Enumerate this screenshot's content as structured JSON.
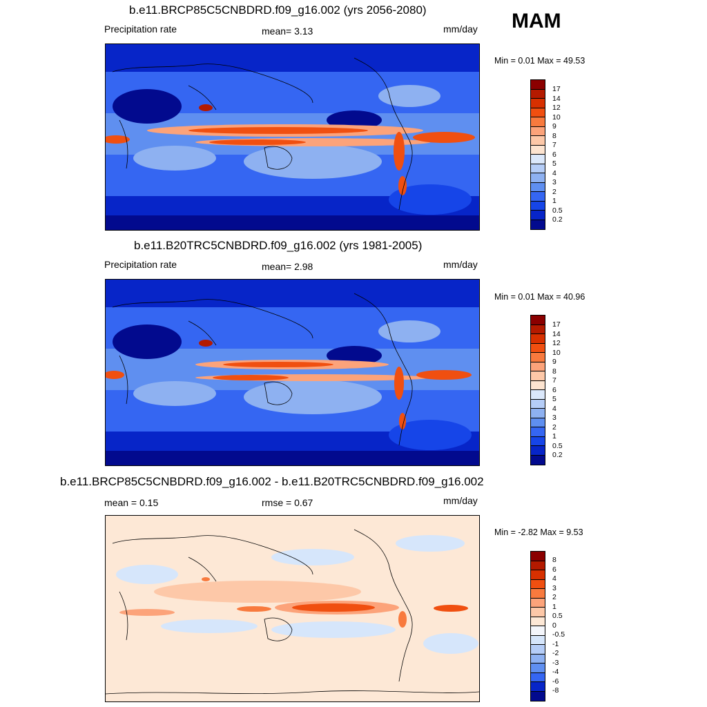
{
  "season": "MAM",
  "panels": [
    {
      "title": "b.e11.BRCP85C5CNBDRD.f09_g16.002 (yrs 2056-2080)",
      "left_label": "Precipitation rate",
      "center_label": "mean=   3.13",
      "units": "mm/day",
      "minmax": "Min =   0.01 Max =  49.53",
      "colorbar": {
        "labels": [
          "17",
          "14",
          "12",
          "10",
          "9",
          "8",
          "7",
          "6",
          "5",
          "4",
          "3",
          "2",
          "1",
          "0.5",
          "0.2"
        ],
        "colors": [
          "#8b0000",
          "#b41a00",
          "#d73000",
          "#f04f10",
          "#f87a3e",
          "#fca37a",
          "#fdc8a8",
          "#fde4d0",
          "#dbe8fb",
          "#b5cdf7",
          "#8eb1f1",
          "#5f8ff0",
          "#3566f2",
          "#1645e8",
          "#0725c8",
          "#020a8e"
        ]
      }
    },
    {
      "title": "b.e11.B20TRC5CNBDRD.f09_g16.002 (yrs 1981-2005)",
      "left_label": "Precipitation rate",
      "center_label": "mean=   2.98",
      "units": "mm/day",
      "minmax": "Min =   0.01 Max =  40.96",
      "colorbar": {
        "labels": [
          "17",
          "14",
          "12",
          "10",
          "9",
          "8",
          "7",
          "6",
          "5",
          "4",
          "3",
          "2",
          "1",
          "0.5",
          "0.2"
        ],
        "colors": [
          "#8b0000",
          "#b41a00",
          "#d73000",
          "#f04f10",
          "#f87a3e",
          "#fca37a",
          "#fdc8a8",
          "#fde4d0",
          "#dbe8fb",
          "#b5cdf7",
          "#8eb1f1",
          "#5f8ff0",
          "#3566f2",
          "#1645e8",
          "#0725c8",
          "#020a8e"
        ]
      }
    },
    {
      "title": "b.e11.BRCP85C5CNBDRD.f09_g16.002 - b.e11.B20TRC5CNBDRD.f09_g16.002",
      "left_label": "mean =   0.15",
      "center_label": "rmse =   0.67",
      "units": "mm/day",
      "minmax": "Min =  -2.82 Max =   9.53",
      "colorbar": {
        "labels": [
          "8",
          "6",
          "4",
          "3",
          "2",
          "1",
          "0.5",
          "0",
          "-0.5",
          "-1",
          "-2",
          "-3",
          "-4",
          "-6",
          "-8"
        ],
        "colors": [
          "#8b0000",
          "#b41a00",
          "#d73000",
          "#f04f10",
          "#f87a3e",
          "#fca37a",
          "#fdc8a8",
          "#fde8d6",
          "#f4f6fb",
          "#d6e6fb",
          "#b5cdf7",
          "#8eb1f1",
          "#5f8ff0",
          "#3566f2",
          "#0725c8",
          "#020a8e"
        ]
      }
    }
  ]
}
